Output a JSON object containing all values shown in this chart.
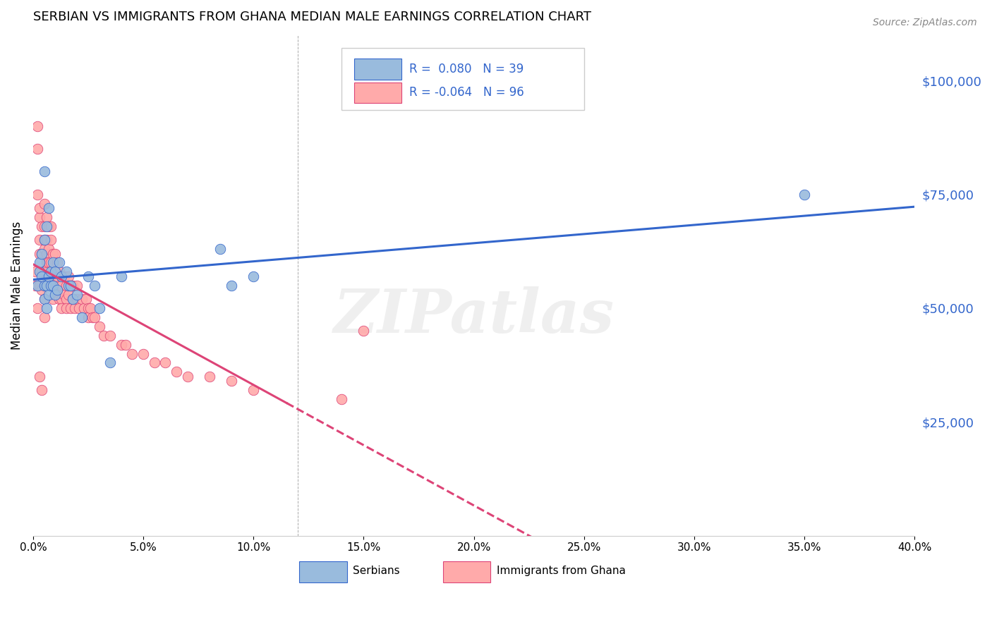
{
  "title": "SERBIAN VS IMMIGRANTS FROM GHANA MEDIAN MALE EARNINGS CORRELATION CHART",
  "source": "Source: ZipAtlas.com",
  "ylabel": "Median Male Earnings",
  "right_ytick_labels": [
    "$25,000",
    "$50,000",
    "$75,000",
    "$100,000"
  ],
  "right_ytick_values": [
    25000,
    50000,
    75000,
    100000
  ],
  "watermark": "ZIPatlas",
  "blue_color": "#99BBDD",
  "pink_color": "#FFAAAA",
  "trend_blue": "#3366CC",
  "trend_pink": "#DD4477",
  "xlim": [
    0.0,
    0.4
  ],
  "ylim": [
    0,
    110000
  ],
  "serbian_x": [
    0.002,
    0.003,
    0.003,
    0.004,
    0.004,
    0.005,
    0.005,
    0.005,
    0.006,
    0.006,
    0.006,
    0.007,
    0.007,
    0.007,
    0.008,
    0.008,
    0.009,
    0.009,
    0.01,
    0.01,
    0.011,
    0.012,
    0.013,
    0.015,
    0.016,
    0.017,
    0.018,
    0.02,
    0.022,
    0.025,
    0.028,
    0.03,
    0.035,
    0.04,
    0.085,
    0.09,
    0.1,
    0.35,
    0.005
  ],
  "serbian_y": [
    55000,
    58000,
    60000,
    62000,
    57000,
    55000,
    52000,
    65000,
    68000,
    50000,
    55000,
    53000,
    57000,
    72000,
    55000,
    58000,
    60000,
    55000,
    53000,
    58000,
    54000,
    60000,
    57000,
    58000,
    55000,
    55000,
    52000,
    53000,
    48000,
    57000,
    55000,
    50000,
    38000,
    57000,
    63000,
    55000,
    57000,
    75000,
    80000
  ],
  "ghana_x": [
    0.001,
    0.001,
    0.002,
    0.002,
    0.002,
    0.002,
    0.003,
    0.003,
    0.003,
    0.003,
    0.003,
    0.004,
    0.004,
    0.004,
    0.004,
    0.005,
    0.005,
    0.005,
    0.005,
    0.005,
    0.005,
    0.005,
    0.006,
    0.006,
    0.006,
    0.006,
    0.006,
    0.007,
    0.007,
    0.007,
    0.007,
    0.007,
    0.008,
    0.008,
    0.008,
    0.008,
    0.009,
    0.009,
    0.009,
    0.009,
    0.01,
    0.01,
    0.01,
    0.01,
    0.011,
    0.011,
    0.011,
    0.012,
    0.012,
    0.012,
    0.013,
    0.013,
    0.013,
    0.013,
    0.014,
    0.014,
    0.015,
    0.015,
    0.015,
    0.016,
    0.016,
    0.017,
    0.017,
    0.018,
    0.018,
    0.019,
    0.02,
    0.02,
    0.021,
    0.022,
    0.023,
    0.024,
    0.025,
    0.025,
    0.026,
    0.027,
    0.028,
    0.03,
    0.032,
    0.035,
    0.04,
    0.042,
    0.045,
    0.05,
    0.055,
    0.06,
    0.065,
    0.07,
    0.08,
    0.09,
    0.1,
    0.14,
    0.15,
    0.003,
    0.004,
    0.005
  ],
  "ghana_y": [
    55000,
    58000,
    85000,
    90000,
    75000,
    50000,
    70000,
    65000,
    72000,
    62000,
    55000,
    68000,
    62000,
    58000,
    54000,
    73000,
    68000,
    63000,
    58000,
    55000,
    52000,
    65000,
    70000,
    65000,
    62000,
    60000,
    57000,
    68000,
    63000,
    60000,
    57000,
    55000,
    68000,
    65000,
    60000,
    57000,
    62000,
    58000,
    55000,
    52000,
    62000,
    58000,
    55000,
    55000,
    60000,
    57000,
    53000,
    58000,
    55000,
    52000,
    57000,
    55000,
    52000,
    50000,
    57000,
    53000,
    55000,
    52000,
    50000,
    57000,
    53000,
    55000,
    50000,
    55000,
    52000,
    50000,
    55000,
    52000,
    50000,
    52000,
    50000,
    52000,
    50000,
    48000,
    50000,
    48000,
    48000,
    46000,
    44000,
    44000,
    42000,
    42000,
    40000,
    40000,
    38000,
    38000,
    36000,
    35000,
    35000,
    34000,
    32000,
    30000,
    45000,
    35000,
    32000,
    48000
  ]
}
